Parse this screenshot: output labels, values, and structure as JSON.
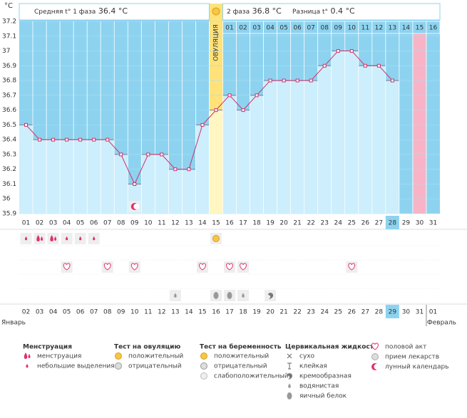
{
  "chart_data": {
    "type": "line",
    "y_label": "°C",
    "unit": "°C",
    "phase1_label": "Средняя t° 1 фаза",
    "phase1_avg": 36.4,
    "phase2_label": "2 фаза",
    "phase2_avg": 36.8,
    "diff_label": "Разница t°",
    "diff": 0.4,
    "ovulation_label": "ОВУЛЯЦИЯ",
    "ovulation_day": "15",
    "marked_day": "30",
    "current_day": "28",
    "current_date": "29",
    "categories": [
      "01",
      "02",
      "03",
      "04",
      "05",
      "06",
      "07",
      "08",
      "09",
      "10",
      "11",
      "12",
      "13",
      "14",
      "15",
      "16",
      "17",
      "18",
      "19",
      "20",
      "21",
      "22",
      "23",
      "24",
      "25",
      "26",
      "27",
      "28",
      "29",
      "30",
      "31"
    ],
    "phase2_days": [
      "01",
      "02",
      "03",
      "04",
      "05",
      "06",
      "07",
      "08",
      "09",
      "10",
      "11",
      "12",
      "13",
      "14",
      "15",
      "16"
    ],
    "dates": [
      "02",
      "03",
      "04",
      "05",
      "06",
      "07",
      "08",
      "09",
      "10",
      "11",
      "12",
      "13",
      "14",
      "15",
      "16",
      "17",
      "18",
      "19",
      "20",
      "21",
      "22",
      "23",
      "24",
      "25",
      "26",
      "27",
      "28",
      "29",
      "30",
      "31",
      "01"
    ],
    "red_dates": [
      "04",
      "05",
      "11",
      "12",
      "18",
      "19",
      "25",
      "26",
      "01"
    ],
    "months": [
      "Январь",
      "Февраль"
    ],
    "values": [
      36.5,
      36.4,
      36.4,
      36.4,
      36.4,
      36.4,
      36.4,
      36.3,
      36.1,
      36.3,
      36.3,
      36.2,
      36.2,
      36.5,
      36.6,
      36.7,
      36.6,
      36.7,
      36.8,
      36.8,
      36.8,
      36.8,
      36.9,
      37.0,
      37.0,
      36.9,
      36.9,
      36.8,
      null,
      null,
      null
    ],
    "color": "#d0306a",
    "ylim": [
      35.9,
      37.2
    ],
    "yticks": [
      35.9,
      36,
      36.1,
      36.2,
      36.3,
      36.4,
      36.5,
      36.6,
      36.7,
      36.8,
      36.9,
      37,
      37.1,
      37.2
    ],
    "grid": true,
    "legend": [
      {
        "title": "Менструация",
        "items": [
          {
            "label": "менструация",
            "days": [
              "02",
              "03"
            ]
          },
          {
            "label": "небольшие выделения",
            "days": [
              "01",
              "04",
              "05",
              "06"
            ]
          }
        ]
      },
      {
        "title": "Тест на овуляцию",
        "items": [
          {
            "label": "положительный",
            "days": [
              "15"
            ]
          },
          {
            "label": "отрицательный"
          }
        ]
      },
      {
        "title": "Тест на беременность",
        "items": [
          {
            "label": "положительный"
          },
          {
            "label": "отрицательный"
          },
          {
            "label": "слабоположительный"
          }
        ]
      },
      {
        "title": "Цервикальная жидкость",
        "items": [
          {
            "label": "сухо"
          },
          {
            "label": "клейкая"
          },
          {
            "label": "кремообразная",
            "days": [
              "19"
            ]
          },
          {
            "label": "водянистая",
            "days": [
              "12",
              "17"
            ]
          },
          {
            "label": "яичный белок",
            "days": [
              "15",
              "16"
            ]
          }
        ]
      },
      {
        "items": [
          {
            "label": "половой акт",
            "days": [
              "04",
              "07",
              "09",
              "14",
              "16",
              "17",
              "25"
            ]
          },
          {
            "label": "прием лекарств"
          },
          {
            "label": "лунный календарь",
            "days": [
              "09"
            ]
          }
        ]
      }
    ]
  }
}
